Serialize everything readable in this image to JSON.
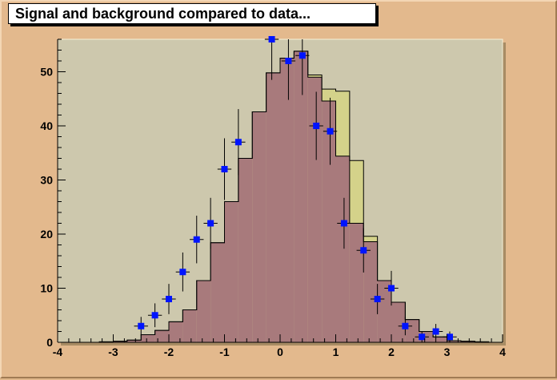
{
  "title": "Signal and background compared to data...",
  "colors": {
    "canvas": "#e3b98d",
    "frame": "#cdc8ad",
    "signal_fill": "#d4d28a",
    "background_fill": "#a87a7c",
    "data_marker": "#0014ff"
  },
  "chart_data": {
    "type": "bar",
    "title": "Signal and background compared to data...",
    "xlabel": "",
    "ylabel": "",
    "xlim": [
      -4,
      4
    ],
    "ylim": [
      0,
      56
    ],
    "grid": false,
    "x_ticks": [
      -4,
      -3,
      -2,
      -1,
      0,
      1,
      2,
      3,
      4
    ],
    "y_ticks": [
      0,
      10,
      20,
      30,
      40,
      50
    ],
    "bin_width": 0.25,
    "bin_edges_start": -4,
    "series": [
      {
        "kind": "stacked-total",
        "values": [
          0,
          0,
          0,
          0.1,
          0.2,
          0.4,
          1.4,
          2.2,
          3.8,
          6.0,
          11.4,
          18.4,
          26.0,
          34.0,
          42.6,
          49.8,
          52.5,
          53.8,
          49.4,
          46.8,
          46.4,
          33.6,
          19.6,
          11.4,
          7.4,
          4.2,
          2.0,
          1.0,
          0.3,
          0.2,
          0.1,
          0
        ]
      },
      {
        "kind": "background",
        "values": [
          0,
          0,
          0,
          0.1,
          0.2,
          0.4,
          1.4,
          2.2,
          3.8,
          6.0,
          11.4,
          18.4,
          26.0,
          34.0,
          42.6,
          49.8,
          52.5,
          53.8,
          49.0,
          44.6,
          34.4,
          22.0,
          18.6,
          11.4,
          7.4,
          4.2,
          2.0,
          1.0,
          0.3,
          0.2,
          0.1,
          0
        ]
      },
      {
        "kind": "data",
        "points": [
          {
            "x": -2.5,
            "y": 3,
            "err": 1.7
          },
          {
            "x": -2.25,
            "y": 5,
            "err": 2.2
          },
          {
            "x": -2.0,
            "y": 8,
            "err": 2.8
          },
          {
            "x": -1.75,
            "y": 13,
            "err": 3.6
          },
          {
            "x": -1.5,
            "y": 19,
            "err": 4.4
          },
          {
            "x": -1.25,
            "y": 22,
            "err": 4.7
          },
          {
            "x": -1.0,
            "y": 32,
            "err": 5.7
          },
          {
            "x": -0.75,
            "y": 37,
            "err": 6.1
          },
          {
            "x": -0.15,
            "y": 56,
            "err": 7.5
          },
          {
            "x": 0.15,
            "y": 52,
            "err": 7.2
          },
          {
            "x": 0.4,
            "y": 53,
            "err": 7.3
          },
          {
            "x": 0.65,
            "y": 40,
            "err": 6.3
          },
          {
            "x": 0.9,
            "y": 39,
            "err": 6.2
          },
          {
            "x": 1.15,
            "y": 22,
            "err": 4.7
          },
          {
            "x": 1.5,
            "y": 17,
            "err": 4.1
          },
          {
            "x": 1.75,
            "y": 8,
            "err": 2.8
          },
          {
            "x": 2.0,
            "y": 10,
            "err": 3.2
          },
          {
            "x": 2.25,
            "y": 3,
            "err": 1.7
          },
          {
            "x": 2.55,
            "y": 1,
            "err": 1.0
          },
          {
            "x": 2.8,
            "y": 2,
            "err": 1.4
          },
          {
            "x": 3.05,
            "y": 1,
            "err": 1.0
          }
        ]
      }
    ]
  }
}
